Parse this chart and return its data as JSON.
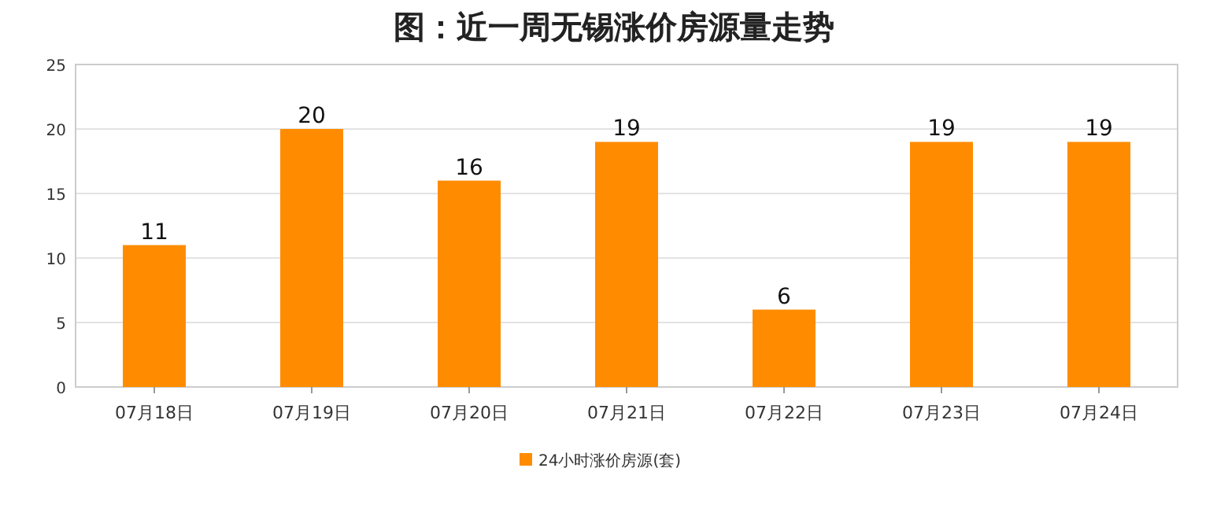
{
  "chart_data": {
    "type": "bar",
    "title": "图：近一周无锡涨价房源量走势",
    "categories": [
      "07月18日",
      "07月19日",
      "07月20日",
      "07月21日",
      "07月22日",
      "07月23日",
      "07月24日"
    ],
    "series": [
      {
        "name": "24小时涨价房源(套)",
        "color": "#ff8c00",
        "values": [
          11,
          20,
          16,
          19,
          6,
          19,
          19
        ]
      }
    ],
    "ylim": [
      0,
      25
    ],
    "yticks": [
      0,
      5,
      10,
      15,
      20,
      25
    ],
    "grid": "y",
    "legend": "bottom",
    "data_labels": true
  }
}
